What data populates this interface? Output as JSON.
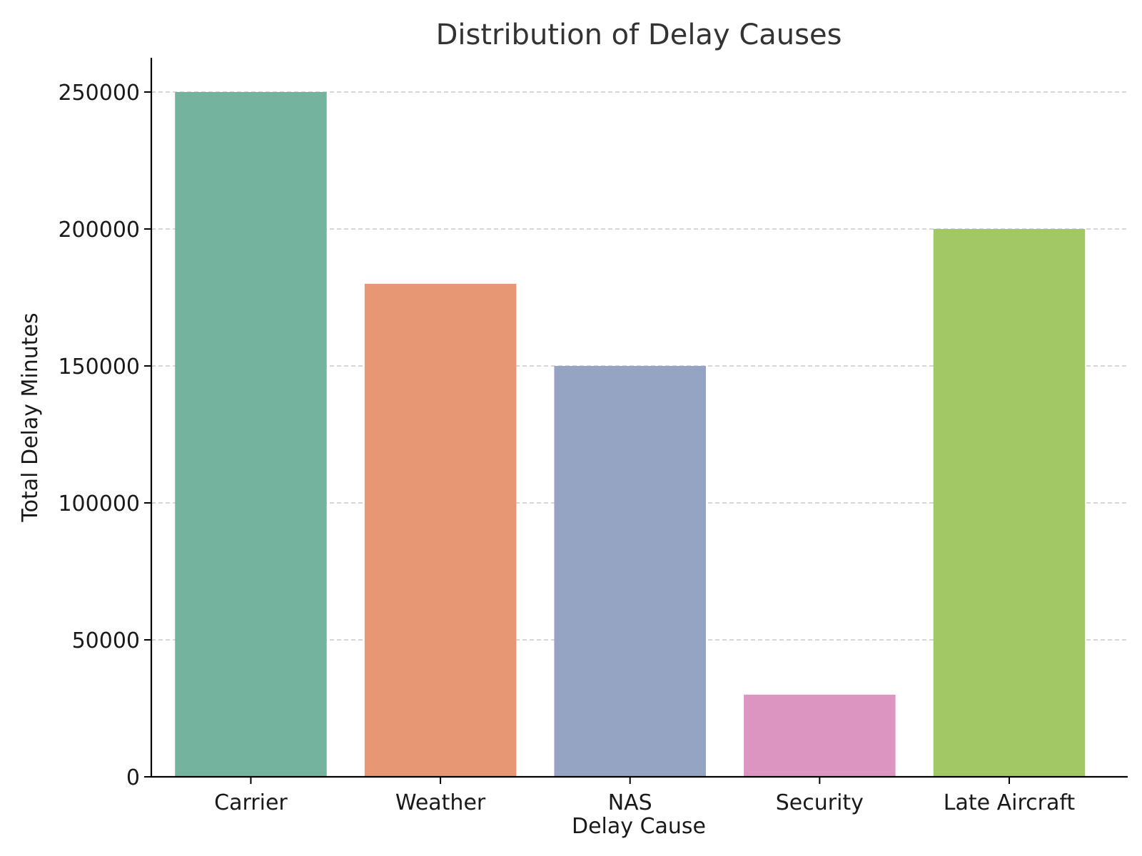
{
  "chart_data": {
    "type": "bar",
    "title": "Distribution of Delay Causes",
    "xlabel": "Delay Cause",
    "ylabel": "Total Delay Minutes",
    "categories": [
      "Carrier",
      "Weather",
      "NAS",
      "Security",
      "Late Aircraft"
    ],
    "values": [
      250000,
      180000,
      150000,
      30000,
      200000
    ],
    "colors": [
      "#74b49f",
      "#e89775",
      "#95a4c2",
      "#dc95c0",
      "#a2c866"
    ],
    "ylim": [
      0,
      262500
    ],
    "yticks": [
      0,
      50000,
      100000,
      150000,
      200000,
      250000
    ],
    "ytick_labels": [
      "0",
      "50000",
      "100000",
      "150000",
      "200000",
      "250000"
    ],
    "grid": "horizontal dashed",
    "legend": "none"
  }
}
